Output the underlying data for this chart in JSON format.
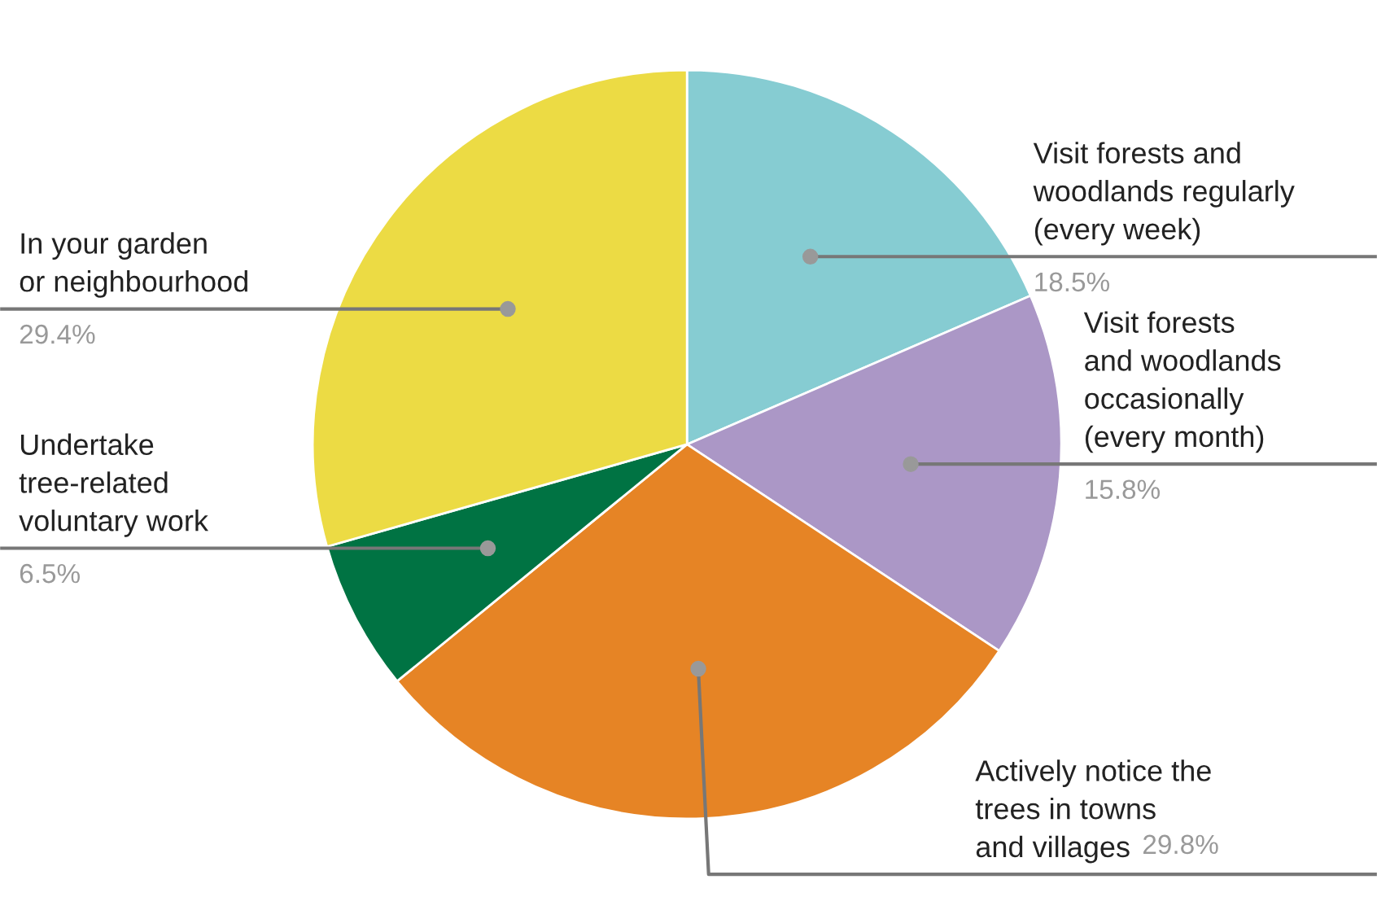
{
  "chart_data": {
    "type": "pie",
    "categories": [
      "Visit forests and\nwoodlands regularly\n(every week)",
      "Visit forests\nand woodlands\noccasionally\n(every month)",
      "Actively notice the\ntrees in towns\nand villages",
      "Undertake\ntree-related\nvoluntary work",
      "In your garden\nor neighbourhood"
    ],
    "values": [
      18.5,
      15.8,
      29.8,
      6.5,
      29.4
    ],
    "colors": [
      "#86ccd2",
      "#ab97c6",
      "#e68425",
      "#007343",
      "#ecdb44"
    ],
    "value_labels": [
      "18.5%",
      "15.8%",
      "29.8%",
      "6.5%",
      "29.4%"
    ]
  }
}
